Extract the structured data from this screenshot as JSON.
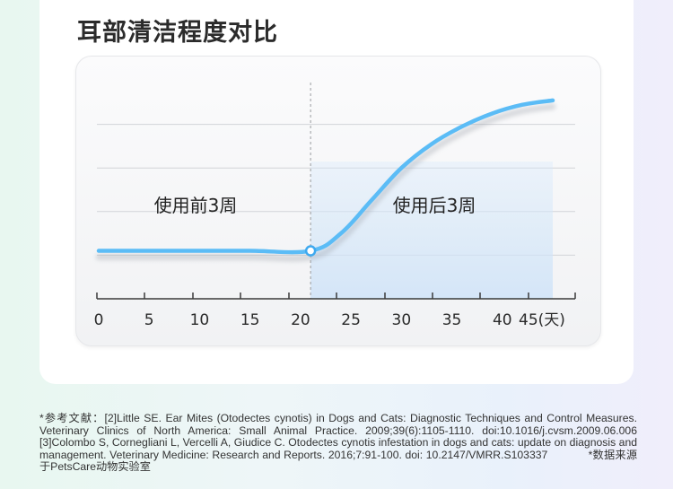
{
  "title": "耳部清洁程度对比",
  "chart_data": {
    "type": "line",
    "title": "耳部清洁程度对比",
    "x_ticks": [
      0,
      5,
      10,
      15,
      20,
      25,
      30,
      35,
      40,
      45
    ],
    "x_unit_suffix": "(天)",
    "xlim": [
      0,
      45
    ],
    "grid": true,
    "split_at": 21,
    "annotations": [
      "使用前3周",
      "使用后3周"
    ],
    "series": [
      {
        "x": [
          0,
          5,
          10,
          15,
          21,
          24,
          27,
          30,
          33,
          36,
          39,
          42,
          45
        ],
        "y": [
          22,
          22,
          22,
          22,
          22,
          30,
          45,
          60,
          71,
          79,
          85,
          89,
          91
        ]
      }
    ],
    "ylim": [
      0,
      100
    ],
    "line_color": "#5bbcf6",
    "shade_color": "#d6e9fb"
  },
  "footnote": {
    "text": "*参考文献：[2]Little SE. Ear Mites (Otodectes cynotis) in Dogs and Cats: Diagnostic Techniques and Control Measures. Veterinary Clinics of North America: Small Animal Practice. 2009;39(6):1105-1110. doi:10.1016/j.cvsm.2009.06.006   [3]Colombo S, Cornegliani L, Vercelli A, Giudice C. Otodectes cynotis infestation in dogs and cats: update on diagnosis and management. Veterinary Medicine: Research and Reports. 2016;7:91-100. doi: 10.2147/VMRR.S103337",
    "source": "*数据来源于PetsCare动物实验室"
  }
}
